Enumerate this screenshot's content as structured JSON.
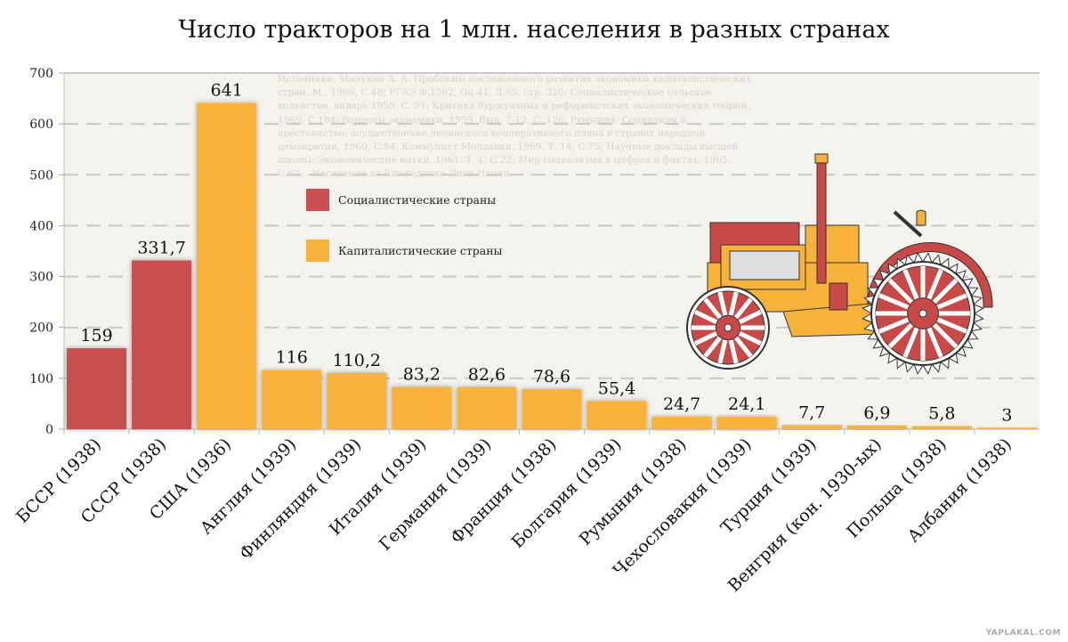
{
  "chart_data": {
    "type": "bar",
    "title": "Число тракторов на 1 млн. населения в разных странах",
    "xlabel": "",
    "ylabel": "",
    "ylim": [
      0,
      700
    ],
    "yticks": [
      "0",
      "100",
      "200",
      "300",
      "400",
      "500",
      "600",
      "700"
    ],
    "grid": true,
    "categories": [
      "БССР  (1938)",
      "СССР (1938)",
      "США (1936)",
      "Англия (1939)",
      "Финляндия (1939)",
      "Италия (1939)",
      "Германия (1939)",
      "Франция (1938)",
      "Болгария (1939)",
      "Румыния (1938)",
      "Чехословакия (1939)",
      "Турция (1939)",
      "Венгрия (кон. 1930-ых)",
      "Польша (1938)",
      "Албания (1938)"
    ],
    "values": [
      159,
      331.7,
      641,
      116,
      110.2,
      83.2,
      82.6,
      78.6,
      55.4,
      24.7,
      24.1,
      7.7,
      6.9,
      5.8,
      3
    ],
    "value_labels": [
      "159",
      "331,7",
      "641",
      "116",
      "110,2",
      "83,2",
      "82,6",
      "78,6",
      "55,4",
      "24,7",
      "24,1",
      "7,7",
      "6,9",
      "5,8",
      "3"
    ],
    "groups": [
      "soc",
      "soc",
      "cap",
      "cap",
      "cap",
      "cap",
      "cap",
      "cap",
      "cap",
      "cap",
      "cap",
      "cap",
      "cap",
      "cap",
      "cap"
    ],
    "legend": {
      "placement": "top-left-inside",
      "entries": [
        {
          "key": "soc",
          "label": "Социалистические страны",
          "color": "#c85050"
        },
        {
          "key": "cap",
          "label": "Капиталистические страны",
          "color": "#f6b23b"
        }
      ]
    },
    "annotation": "Источники: Манукян А. А. Проблемы послевоенного развития экономики капиталистических стран. М., 1966, С.48; РГАЭ Ф.1562, Оп.41, Д.65, стр. 320; Социалистическое сельское хозяйство, январь 1950, С. 51; Критика буржуазных и реформистских экономических теорий, 1969, С.184; Вопросы экономики, 1959, Вып. 7-12, С. 126; Румыния: Социализм и крестьянство: осуществление ленинского кооперативного плана в странах народной демократии, 1960, С.94; Коммунист Молдавии. 1969. Т. 14, С.75; Научные доклады высшей школы: Экономические науки, 1961. Т. 1, С.22; Мир социализма в цифрах и фактах, 1965, С.62; . Население из Ежегодника Лиги Наций."
  },
  "watermark": "YAPLAKAL.COM",
  "colors": {
    "plot_bg": "#f4f2ec",
    "grid": "#c8c8c8"
  }
}
